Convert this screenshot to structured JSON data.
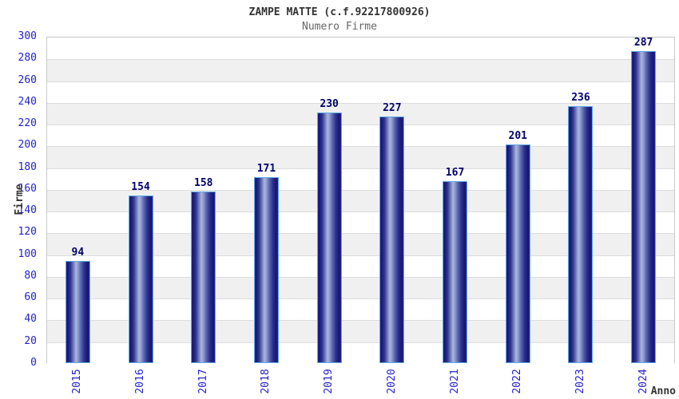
{
  "chart_data": {
    "type": "bar",
    "title": "ZAMPE MATTE (c.f.92217800926)",
    "subtitle": "Numero Firme",
    "xlabel": "Anno",
    "ylabel": "Firme",
    "categories": [
      "2015",
      "2016",
      "2017",
      "2018",
      "2019",
      "2020",
      "2021",
      "2022",
      "2023",
      "2024"
    ],
    "values": [
      94,
      154,
      158,
      171,
      230,
      227,
      167,
      201,
      236,
      287
    ],
    "ylim": [
      0,
      300
    ],
    "ytick_step": 20,
    "grid": "horizontal-bands",
    "legend": false,
    "colors": {
      "bar_edge_dark": "#16166e",
      "bar_highlight": "#aab4de",
      "bar_border": "#5ea9e6",
      "tick_label": "#2222cc",
      "value_label": "#00006e",
      "band_gray": "#f0f0f0",
      "band_white": "#ffffff",
      "gridline": "#dcdcdc",
      "plot_border": "#c9c9c9",
      "title": "#333333",
      "subtitle": "#666666",
      "axis_label": "#333333"
    }
  }
}
